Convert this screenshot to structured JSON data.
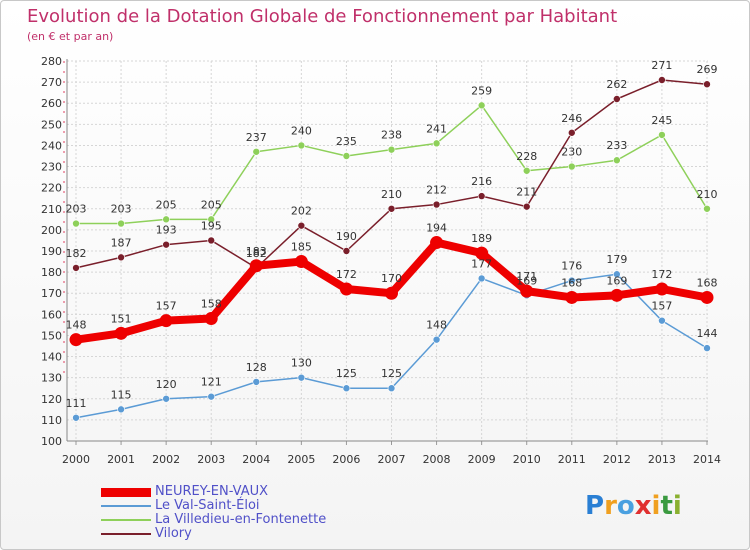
{
  "header": {
    "title": "Evolution de la Dotation Globale de Fonctionnement par Habitant",
    "subtitle": "(en € et par an)"
  },
  "chart_data": {
    "type": "line",
    "title": "Evolution de la Dotation Globale de Fonctionnement par Habitant",
    "subtitle": "(en € et par an)",
    "xlabel": "",
    "ylabel": "",
    "x": [
      "2000",
      "2001",
      "2002",
      "2003",
      "2004",
      "2005",
      "2006",
      "2007",
      "2008",
      "2009",
      "2010",
      "2011",
      "2012",
      "2013",
      "2014"
    ],
    "ylim": [
      100,
      280
    ],
    "yticks": [
      100,
      110,
      120,
      130,
      140,
      150,
      160,
      170,
      180,
      190,
      200,
      210,
      220,
      230,
      240,
      250,
      260,
      270,
      280
    ],
    "grid": true,
    "legend_position": "bottom-left",
    "series": [
      {
        "name": "NEUREY-EN-VAUX",
        "color": "#ee0000",
        "values": [
          148,
          151,
          157,
          158,
          183,
          185,
          172,
          170,
          194,
          189,
          171,
          168,
          169,
          172,
          168
        ]
      },
      {
        "name": "Le Val-Saint-Éloi",
        "color": "#5b9bd5",
        "values": [
          111,
          115,
          120,
          121,
          128,
          130,
          125,
          125,
          148,
          177,
          169,
          176,
          179,
          157,
          144
        ]
      },
      {
        "name": "La Villedieu-en-Fontenette",
        "color": "#8ed05a",
        "values": [
          203,
          203,
          205,
          205,
          237,
          240,
          235,
          238,
          241,
          259,
          228,
          230,
          233,
          245,
          210
        ]
      },
      {
        "name": "Vilory",
        "color": "#7a1f2b",
        "values": [
          182,
          187,
          193,
          195,
          182,
          202,
          190,
          210,
          212,
          216,
          211,
          246,
          262,
          271,
          269
        ]
      }
    ]
  },
  "logo": {
    "letters": [
      "P",
      "r",
      "o",
      "x",
      "i",
      "t",
      "i"
    ],
    "colors": [
      "#2a7fd4",
      "#f0a020",
      "#4aa0e0",
      "#e03030",
      "#f0a020",
      "#3a9a40",
      "#8ab030"
    ]
  }
}
